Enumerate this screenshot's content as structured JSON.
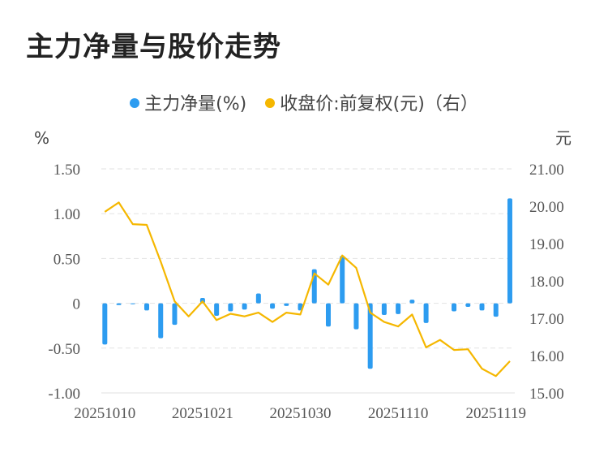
{
  "title": "主力净量与股价走势",
  "legend": [
    {
      "label": "主力净量(%)",
      "color": "#2d9cf0"
    },
    {
      "label": "收盘价:前复权(元)（右）",
      "color": "#f5b700"
    }
  ],
  "chart_data": {
    "type": "bar+line",
    "x": [
      "20251010",
      "20251013",
      "20251014",
      "20251015",
      "20251016",
      "20251017",
      "20251020",
      "20251021",
      "20251022",
      "20251023",
      "20251024",
      "20251027",
      "20251028",
      "20251029",
      "20251030",
      "20251031",
      "20251103",
      "20251104",
      "20251105",
      "20251106",
      "20251107",
      "20251110",
      "20251111",
      "20251112",
      "20251113",
      "20251114",
      "20251117",
      "20251118",
      "20251119",
      "20251120"
    ],
    "x_tick_labels": [
      "20251010",
      "20251021",
      "20251030",
      "20251110",
      "20251119"
    ],
    "series": [
      {
        "name": "主力净量(%)",
        "type": "bar",
        "axis": "left",
        "color": "#2d9cf0",
        "values": [
          -0.46,
          -0.02,
          -0.01,
          -0.08,
          -0.39,
          -0.24,
          0.0,
          0.06,
          -0.14,
          -0.09,
          -0.07,
          0.11,
          -0.06,
          -0.03,
          -0.08,
          0.38,
          -0.26,
          0.53,
          -0.29,
          -0.73,
          -0.13,
          -0.12,
          0.04,
          -0.22,
          0.0,
          -0.09,
          -0.04,
          -0.08,
          -0.15,
          1.17
        ]
      },
      {
        "name": "收盘价:前复权(元)（右）",
        "type": "line",
        "axis": "right",
        "color": "#f5b700",
        "values": [
          19.85,
          20.1,
          19.52,
          19.5,
          18.52,
          17.45,
          17.05,
          17.45,
          16.95,
          17.12,
          17.05,
          17.15,
          16.9,
          17.15,
          17.1,
          18.2,
          17.9,
          18.68,
          18.35,
          17.15,
          16.9,
          16.78,
          17.1,
          16.22,
          16.42,
          16.15,
          16.17,
          15.65,
          15.45,
          15.85
        ]
      }
    ],
    "y_left": {
      "unit": "%",
      "ylim": [
        -1.0,
        1.5
      ],
      "ticks": [
        "1.50",
        "1.00",
        "0.50",
        "0",
        "-0.50",
        "-1.00"
      ],
      "tick_values": [
        1.5,
        1.0,
        0.5,
        0,
        -0.5,
        -1.0
      ]
    },
    "y_right": {
      "unit": "元",
      "ylim": [
        15.0,
        21.0
      ],
      "ticks": [
        "21.00",
        "20.00",
        "19.00",
        "18.00",
        "17.00",
        "16.00",
        "15.00"
      ],
      "tick_values": [
        21,
        20,
        19,
        18,
        17,
        16,
        15
      ]
    },
    "grid": true,
    "legend_position": "top-center"
  }
}
